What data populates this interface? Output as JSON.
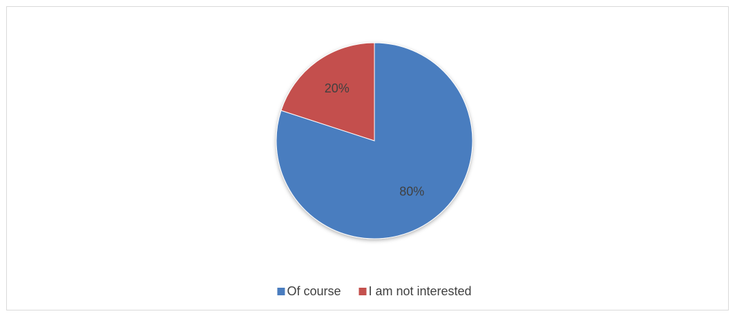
{
  "chart_data": {
    "type": "pie",
    "categories": [
      "Of course",
      "I am not interested"
    ],
    "values": [
      80,
      20
    ],
    "value_labels": [
      "80%",
      "20%"
    ],
    "colors": [
      "#4a7dbf",
      "#c4504d"
    ],
    "legend": "bottom"
  }
}
